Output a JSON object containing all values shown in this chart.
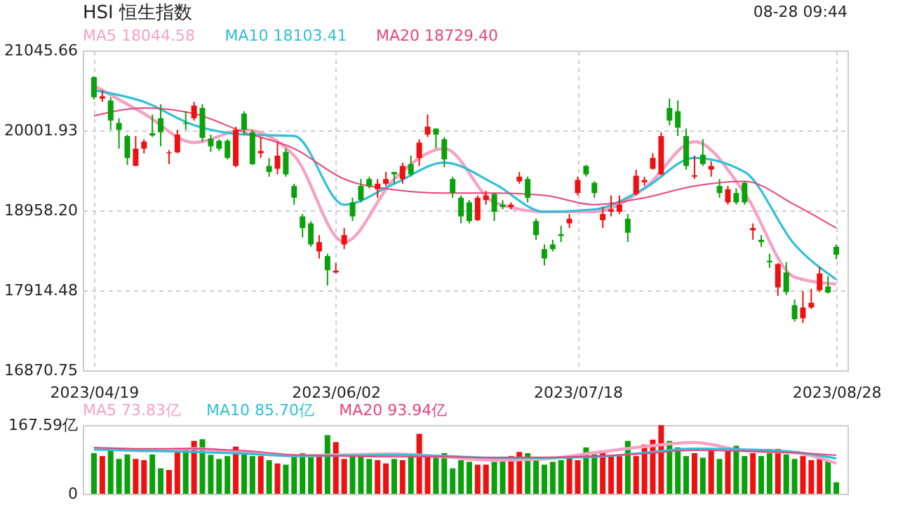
{
  "chart_data": [
    {
      "type": "candlestick",
      "title": "HSI 恒生指数",
      "annotations": [
        "08-28 09:44"
      ],
      "categories": [
        "2023/04/19",
        null,
        null,
        null,
        null,
        null,
        null,
        null,
        null,
        null,
        null,
        null,
        null,
        null,
        null,
        null,
        null,
        null,
        null,
        null,
        null,
        null,
        null,
        null,
        null,
        null,
        null,
        null,
        null,
        "2023/06/02",
        null,
        null,
        null,
        null,
        null,
        null,
        null,
        null,
        null,
        null,
        null,
        null,
        null,
        null,
        null,
        null,
        null,
        null,
        null,
        null,
        null,
        null,
        null,
        null,
        null,
        null,
        null,
        null,
        "2023/07/18",
        null,
        null,
        null,
        null,
        null,
        null,
        null,
        null,
        null,
        null,
        null,
        null,
        null,
        null,
        null,
        null,
        null,
        null,
        null,
        null,
        null,
        null,
        null,
        null,
        null,
        null,
        null,
        null,
        null,
        null,
        "2023/08/28"
      ],
      "ohlc": [
        [
          20698,
          20710,
          20405,
          20435
        ],
        [
          20417,
          20527,
          20375,
          20448
        ],
        [
          20393,
          20436,
          20009,
          20131
        ],
        [
          20100,
          20161,
          19765,
          20009
        ],
        [
          19929,
          19948,
          19551,
          19643
        ],
        [
          19539,
          19929,
          19539,
          19765
        ],
        [
          19765,
          19887,
          19703,
          19856
        ],
        [
          19966,
          20210,
          19917,
          19935
        ],
        [
          20161,
          20344,
          19795,
          19978
        ],
        [
          19704,
          19746,
          19563,
          19716
        ],
        [
          19716,
          20009,
          19704,
          19948
        ],
        [
          20100,
          20253,
          20009,
          20088
        ],
        [
          20161,
          20375,
          20131,
          20326
        ],
        [
          20295,
          20344,
          19856,
          19905
        ],
        [
          19893,
          19948,
          19722,
          19795
        ],
        [
          19868,
          19887,
          19734,
          19765
        ],
        [
          19868,
          19887,
          19624,
          19643
        ],
        [
          19539,
          20051,
          19521,
          20009
        ],
        [
          20222,
          20253,
          19948,
          20009
        ],
        [
          19978,
          20009,
          19551,
          19563
        ],
        [
          19704,
          19917,
          19643,
          19734
        ],
        [
          19539,
          19643,
          19399,
          19460
        ],
        [
          19502,
          19856,
          19429,
          19673
        ],
        [
          19722,
          19765,
          19399,
          19429
        ],
        [
          19277,
          19307,
          19033,
          19124
        ],
        [
          18880,
          18911,
          18606,
          18728
        ],
        [
          18789,
          18819,
          18484,
          18514
        ],
        [
          18423,
          18636,
          18331,
          18545
        ],
        [
          18362,
          18392,
          17977,
          18178
        ],
        [
          18148,
          18270,
          18136,
          18172
        ],
        [
          18514,
          18728,
          18453,
          18636
        ],
        [
          19063,
          19124,
          18819,
          18880
        ],
        [
          19277,
          19368,
          19063,
          19093
        ],
        [
          19368,
          19399,
          19246,
          19277
        ],
        [
          19234,
          19368,
          19124,
          19307
        ],
        [
          19307,
          19460,
          19277,
          19368
        ],
        [
          19460,
          19460,
          19307,
          19429
        ],
        [
          19368,
          19582,
          19307,
          19539
        ],
        [
          19563,
          19673,
          19399,
          19429
        ],
        [
          19643,
          19887,
          19539,
          19844
        ],
        [
          19948,
          20210,
          19917,
          20051
        ],
        [
          20027,
          20027,
          19765,
          19948
        ],
        [
          19887,
          19917,
          19521,
          19624
        ],
        [
          19368,
          19399,
          19124,
          19185
        ],
        [
          19124,
          19154,
          18789,
          18880
        ],
        [
          19063,
          19093,
          18789,
          18819
        ],
        [
          18831,
          19154,
          18819,
          19124
        ],
        [
          19093,
          19215,
          19033,
          19154
        ],
        [
          19173,
          19185,
          18819,
          18941
        ],
        [
          19033,
          19093,
          18972,
          19002
        ],
        [
          19002,
          19063,
          18972,
          19033
        ],
        [
          19338,
          19460,
          19307,
          19399
        ],
        [
          19368,
          19399,
          19063,
          19124
        ],
        [
          18819,
          18850,
          18575,
          18636
        ],
        [
          18453,
          18514,
          18240,
          18331
        ],
        [
          18514,
          18575,
          18423,
          18453
        ],
        [
          18648,
          18758,
          18545,
          18624
        ],
        [
          18789,
          18911,
          18728,
          18850
        ],
        [
          19185,
          19399,
          19154,
          19356
        ],
        [
          19539,
          19551,
          19399,
          19429
        ],
        [
          19319,
          19338,
          19124,
          19185
        ],
        [
          18831,
          19002,
          18728,
          18911
        ],
        [
          18941,
          19154,
          18880,
          18972
        ],
        [
          18941,
          19154,
          18911,
          19033
        ],
        [
          18850,
          18911,
          18545,
          18667
        ],
        [
          19173,
          19490,
          19154,
          19411
        ],
        [
          19325,
          19399,
          19277,
          19356
        ],
        [
          19502,
          19704,
          19490,
          19643
        ],
        [
          19429,
          19978,
          19417,
          19929
        ],
        [
          20295,
          20417,
          20069,
          20131
        ],
        [
          20253,
          20393,
          19929,
          20039
        ],
        [
          19929,
          20027,
          19490,
          19539
        ],
        [
          19399,
          19673,
          19368,
          19417
        ],
        [
          19685,
          19887,
          19539,
          19563
        ],
        [
          19490,
          19600,
          19399,
          19539
        ],
        [
          19277,
          19368,
          19124,
          19185
        ],
        [
          19063,
          19277,
          19033,
          19234
        ],
        [
          19185,
          19246,
          19033,
          19063
        ],
        [
          19319,
          19338,
          19033,
          19063
        ],
        [
          18697,
          18789,
          18575,
          18728
        ],
        [
          18575,
          18636,
          18484,
          18545
        ],
        [
          18301,
          18392,
          18209,
          18282
        ],
        [
          17953,
          18270,
          17843,
          18258
        ],
        [
          18148,
          18282,
          17855,
          17892
        ],
        [
          17721,
          17794,
          17508,
          17538
        ],
        [
          17550,
          17904,
          17489,
          17691
        ],
        [
          17691,
          17935,
          17672,
          17752
        ],
        [
          17916,
          18221,
          17892,
          18136
        ],
        [
          17965,
          18099,
          17874,
          17886
        ],
        [
          18484,
          18514,
          18319,
          18380
        ]
      ],
      "colors": [
        "#0aa10a",
        "#ee1111",
        "#0aa10a",
        "#0aa10a",
        "#0aa10a",
        "#ee1111",
        "#ee1111",
        "#0aa10a",
        "#0aa10a",
        "#ee1111",
        "#ee1111",
        "#0aa10a",
        "#ee1111",
        "#0aa10a",
        "#0aa10a",
        "#0aa10a",
        "#0aa10a",
        "#ee1111",
        "#0aa10a",
        "#0aa10a",
        "#ee1111",
        "#0aa10a",
        "#ee1111",
        "#0aa10a",
        "#0aa10a",
        "#0aa10a",
        "#0aa10a",
        "#ee1111",
        "#0aa10a",
        "#ee1111",
        "#ee1111",
        "#0aa10a",
        "#0aa10a",
        "#0aa10a",
        "#ee1111",
        "#ee1111",
        "#0aa10a",
        "#ee1111",
        "#0aa10a",
        "#ee1111",
        "#ee1111",
        "#0aa10a",
        "#0aa10a",
        "#0aa10a",
        "#0aa10a",
        "#0aa10a",
        "#ee1111",
        "#ee1111",
        "#0aa10a",
        "#0aa10a",
        "#ee1111",
        "#ee1111",
        "#0aa10a",
        "#0aa10a",
        "#0aa10a",
        "#0aa10a",
        "#0aa10a",
        "#ee1111",
        "#ee1111",
        "#0aa10a",
        "#0aa10a",
        "#ee1111",
        "#ee1111",
        "#ee1111",
        "#0aa10a",
        "#ee1111",
        "#ee1111",
        "#ee1111",
        "#ee1111",
        "#0aa10a",
        "#0aa10a",
        "#0aa10a",
        "#ee1111",
        "#0aa10a",
        "#ee1111",
        "#0aa10a",
        "#ee1111",
        "#0aa10a",
        "#0aa10a",
        "#ee1111",
        "#0aa10a",
        "#0aa10a",
        "#ee1111",
        "#0aa10a",
        "#0aa10a",
        "#ee1111",
        "#ee1111",
        "#ee1111",
        "#0aa10a",
        "#0aa10a"
      ],
      "series": [
        {
          "name": "MA5 18044.58",
          "type": "line",
          "color": "#f7a1c4",
          "values": [
            20588,
            null,
            null,
            null,
            null,
            null,
            20222,
            null,
            null,
            null,
            null,
            null,
            19844,
            null,
            null,
            null,
            null,
            null,
            20009,
            null,
            null,
            null,
            null,
            null,
            19673,
            null,
            null,
            null,
            null,
            null,
            18545,
            null,
            null,
            null,
            null,
            null,
            19368,
            null,
            null,
            null,
            null,
            null,
            19765,
            null,
            null,
            null,
            null,
            null,
            19063,
            null,
            null,
            null,
            null,
            null,
            18941,
            null,
            null,
            null,
            null,
            null,
            18941,
            null,
            null,
            null,
            null,
            null,
            19246,
            null,
            null,
            null,
            null,
            null,
            19856,
            null,
            null,
            null,
            null,
            null,
            19185,
            null,
            null,
            null,
            null,
            null,
            18087,
            null,
            null,
            null,
            null,
            17996
          ]
        },
        {
          "name": "MA10 18103.41",
          "type": "line",
          "color": "#2ec0d6",
          "values": [
            20527,
            null,
            null,
            null,
            null,
            null,
            20375,
            null,
            null,
            null,
            null,
            null,
            20070,
            null,
            null,
            null,
            null,
            null,
            19948,
            null,
            null,
            null,
            null,
            null,
            19929,
            null,
            null,
            null,
            null,
            null,
            19033,
            null,
            null,
            null,
            null,
            null,
            19307,
            null,
            null,
            null,
            null,
            null,
            19582,
            null,
            null,
            null,
            null,
            null,
            19307,
            null,
            null,
            null,
            null,
            null,
            18941,
            null,
            null,
            null,
            null,
            null,
            18972,
            null,
            null,
            null,
            null,
            null,
            19246,
            null,
            null,
            null,
            null,
            null,
            19643,
            null,
            null,
            null,
            null,
            null,
            19460,
            null,
            null,
            null,
            null,
            null,
            18514,
            null,
            null,
            null,
            null,
            18056
          ]
        },
        {
          "name": "MA20 18729.40",
          "type": "line",
          "color": "#e8437a",
          "values": [
            20192,
            null,
            null,
            null,
            null,
            null,
            20295,
            null,
            null,
            null,
            null,
            null,
            20222,
            null,
            null,
            null,
            null,
            null,
            19978,
            null,
            null,
            null,
            null,
            null,
            19765,
            null,
            null,
            null,
            null,
            null,
            19368,
            null,
            null,
            null,
            null,
            null,
            19228,
            null,
            null,
            null,
            null,
            null,
            19185,
            null,
            null,
            null,
            null,
            null,
            19185,
            null,
            null,
            null,
            null,
            null,
            19154,
            null,
            null,
            null,
            null,
            null,
            19033,
            null,
            null,
            null,
            null,
            null,
            19124,
            null,
            null,
            null,
            null,
            null,
            19277,
            null,
            null,
            null,
            null,
            null,
            19338,
            null,
            null,
            null,
            null,
            null,
            19033,
            null,
            null,
            null,
            null,
            18728
          ]
        }
      ],
      "ylim": [
        16870.75,
        21045.66
      ],
      "yticks": [
        21045.66,
        20001.93,
        {
          "value": 18958.2,
          "label": "18958.20"
        },
        17914.48,
        16870.75
      ],
      "grid": true,
      "legend": "top"
    },
    {
      "type": "bar",
      "tick_labels": "y",
      "categories": [
        null,
        null,
        null,
        null,
        null,
        null,
        null,
        null,
        null,
        null,
        null,
        null,
        null,
        null,
        null,
        null,
        null,
        null,
        null,
        null,
        null,
        null,
        null,
        null,
        null,
        null,
        null,
        null,
        null,
        null,
        null,
        null,
        null,
        null,
        null,
        null,
        null,
        null,
        null,
        null,
        null,
        null,
        null,
        null,
        null,
        null,
        null,
        null,
        null,
        null,
        null,
        null,
        null,
        null,
        null,
        null,
        null,
        null,
        null,
        null,
        null,
        null,
        null,
        null,
        null,
        null,
        null,
        null,
        null,
        null,
        null,
        null,
        null,
        null,
        null,
        null,
        null,
        null,
        null,
        null,
        null,
        null,
        null,
        null,
        null,
        null,
        null,
        null,
        null,
        null
      ],
      "values": [
        99,
        92,
        106,
        85,
        96,
        85,
        82,
        96,
        62,
        58,
        102,
        109,
        129,
        133,
        95,
        85,
        92,
        115,
        102,
        92,
        92,
        82,
        74,
        71,
        92,
        99,
        89,
        92,
        143,
        126,
        85,
        92,
        92,
        85,
        82,
        74,
        85,
        82,
        99,
        146,
        92,
        95,
        99,
        62,
        82,
        78,
        71,
        71,
        78,
        88,
        92,
        102,
        99,
        82,
        71,
        78,
        82,
        92,
        82,
        113,
        96,
        106,
        92,
        92,
        129,
        92,
        120,
        132,
        167,
        129,
        113,
        92,
        99,
        88,
        109,
        85,
        109,
        117,
        92,
        99,
        92,
        109,
        109,
        96,
        85,
        92,
        82,
        85,
        82,
        28
      ],
      "colors": [
        "#0aa10a",
        "#ee1111",
        "#0aa10a",
        "#0aa10a",
        "#0aa10a",
        "#ee1111",
        "#ee1111",
        "#0aa10a",
        "#0aa10a",
        "#ee1111",
        "#ee1111",
        "#0aa10a",
        "#ee1111",
        "#0aa10a",
        "#0aa10a",
        "#0aa10a",
        "#0aa10a",
        "#ee1111",
        "#0aa10a",
        "#0aa10a",
        "#ee1111",
        "#0aa10a",
        "#ee1111",
        "#0aa10a",
        "#0aa10a",
        "#0aa10a",
        "#0aa10a",
        "#ee1111",
        "#0aa10a",
        "#ee1111",
        "#ee1111",
        "#0aa10a",
        "#0aa10a",
        "#0aa10a",
        "#ee1111",
        "#ee1111",
        "#0aa10a",
        "#ee1111",
        "#0aa10a",
        "#ee1111",
        "#ee1111",
        "#0aa10a",
        "#0aa10a",
        "#0aa10a",
        "#0aa10a",
        "#0aa10a",
        "#ee1111",
        "#ee1111",
        "#0aa10a",
        "#0aa10a",
        "#ee1111",
        "#ee1111",
        "#0aa10a",
        "#0aa10a",
        "#0aa10a",
        "#0aa10a",
        "#0aa10a",
        "#ee1111",
        "#ee1111",
        "#0aa10a",
        "#0aa10a",
        "#ee1111",
        "#ee1111",
        "#ee1111",
        "#0aa10a",
        "#ee1111",
        "#ee1111",
        "#ee1111",
        "#ee1111",
        "#0aa10a",
        "#0aa10a",
        "#0aa10a",
        "#ee1111",
        "#0aa10a",
        "#ee1111",
        "#0aa10a",
        "#ee1111",
        "#0aa10a",
        "#0aa10a",
        "#ee1111",
        "#0aa10a",
        "#0aa10a",
        "#ee1111",
        "#0aa10a",
        "#0aa10a",
        "#ee1111",
        "#ee1111",
        "#ee1111",
        "#0aa10a",
        "#0aa10a"
      ],
      "series": [
        {
          "name": "MA5 73.83亿",
          "type": "line",
          "color": "#f7a1c4",
          "values": [
            110,
            null,
            null,
            null,
            null,
            null,
            105,
            null,
            null,
            null,
            null,
            null,
            110,
            null,
            null,
            null,
            null,
            null,
            100,
            null,
            null,
            null,
            null,
            null,
            93,
            null,
            null,
            null,
            null,
            null,
            95,
            null,
            null,
            null,
            null,
            null,
            97,
            null,
            null,
            null,
            null,
            null,
            90,
            null,
            null,
            null,
            null,
            null,
            82,
            null,
            null,
            null,
            null,
            null,
            85,
            null,
            null,
            null,
            null,
            null,
            100,
            null,
            null,
            null,
            null,
            null,
            115,
            null,
            null,
            null,
            null,
            null,
            125,
            null,
            null,
            null,
            null,
            null,
            105,
            null,
            null,
            null,
            null,
            null,
            100,
            null,
            null,
            null,
            null,
            74
          ]
        },
        {
          "name": "MA10 85.70亿",
          "type": "line",
          "color": "#2ec0d6",
          "values": [
            108,
            null,
            null,
            null,
            null,
            null,
            105,
            null,
            null,
            null,
            null,
            null,
            102,
            null,
            null,
            null,
            null,
            null,
            98,
            null,
            null,
            null,
            null,
            null,
            92,
            null,
            null,
            null,
            null,
            null,
            93,
            null,
            null,
            null,
            null,
            null,
            95,
            null,
            null,
            null,
            null,
            null,
            92,
            null,
            null,
            null,
            null,
            null,
            88,
            null,
            null,
            null,
            null,
            null,
            88,
            null,
            null,
            null,
            null,
            null,
            90,
            null,
            null,
            null,
            null,
            null,
            100,
            null,
            null,
            null,
            null,
            null,
            110,
            null,
            null,
            null,
            null,
            null,
            108,
            null,
            null,
            null,
            null,
            null,
            102,
            null,
            null,
            null,
            null,
            86
          ]
        },
        {
          "name": "MA20 93.94亿",
          "type": "line",
          "color": "#e8437a",
          "values": [
            113,
            null,
            null,
            null,
            null,
            null,
            110,
            null,
            null,
            null,
            null,
            null,
            110,
            null,
            null,
            null,
            null,
            null,
            105,
            null,
            null,
            null,
            null,
            null,
            95,
            null,
            null,
            null,
            null,
            null,
            92,
            null,
            null,
            null,
            null,
            null,
            90,
            null,
            null,
            null,
            null,
            null,
            90,
            null,
            null,
            null,
            null,
            null,
            88,
            null,
            null,
            null,
            null,
            null,
            89,
            null,
            null,
            null,
            null,
            null,
            92,
            null,
            null,
            null,
            null,
            null,
            98,
            null,
            null,
            null,
            null,
            null,
            106,
            null,
            null,
            null,
            null,
            null,
            104,
            null,
            null,
            null,
            null,
            null,
            100,
            null,
            null,
            null,
            null,
            94
          ]
        }
      ],
      "ylim": [
        0,
        167.59
      ],
      "yticks": [
        0,
        {
          "value": 167.59,
          "label": "167.59亿"
        }
      ],
      "grid": true,
      "legend": "top"
    }
  ]
}
